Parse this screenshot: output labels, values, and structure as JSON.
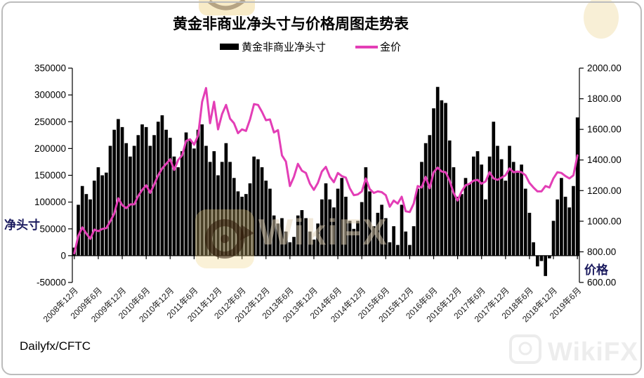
{
  "title": "黄金非商业净头寸与价格周图走势表",
  "source_label": "Dailyfx/CFTC",
  "legend": [
    {
      "label": "黄金非商业净头寸",
      "type": "bar",
      "color": "#000000"
    },
    {
      "label": "金价",
      "type": "line",
      "color": "#e33eb6"
    }
  ],
  "left_axis": {
    "title": "净头寸",
    "min": -50000,
    "max": 350000,
    "step": 50000,
    "ticks": [
      "350000",
      "300000",
      "250000",
      "200000",
      "150000",
      "100000",
      "50000",
      "0",
      "-50000"
    ],
    "title_color": "#1a1a5e"
  },
  "right_axis": {
    "title": "价格",
    "min": 600,
    "max": 2000,
    "step": 200,
    "ticks": [
      "2000.00",
      "1800.00",
      "1600.00",
      "1400.00",
      "1200.00",
      "1000.00",
      "800.00",
      "600.00"
    ],
    "title_color": "#1a1a5e"
  },
  "x_axis": {
    "tick_labels": [
      "2008年12月",
      "2009年6月",
      "2009年12月",
      "2010年6月",
      "2010年12月",
      "2011年6月",
      "2011年12月",
      "2012年6月",
      "2012年12月",
      "2013年6月",
      "2013年12月",
      "2014年6月",
      "2014年12月",
      "2015年6月",
      "2015年12月",
      "2016年6月",
      "2016年12月",
      "2017年6月",
      "2017年12月",
      "2018年6月",
      "2018年12月",
      "2019年6月"
    ],
    "points_per_tick": 6
  },
  "watermark": {
    "logo_text": "WikiFX",
    "bottom_text": "WikiFX"
  },
  "chart_data": {
    "type": "combo",
    "x_start_label": "2008年12月",
    "x_end_label": "2019年6月",
    "x_resolution": "monthly estimates read from weekly chart",
    "grid": false,
    "legend_position": "top",
    "series": [
      {
        "name": "黄金非商业净头寸",
        "type": "bar",
        "axis": "left",
        "color": "#000000",
        "ylim": [
          -50000,
          350000
        ],
        "values": [
          15000,
          95000,
          130000,
          115000,
          105000,
          140000,
          165000,
          150000,
          155000,
          205000,
          235000,
          255000,
          240000,
          210000,
          185000,
          205000,
          225000,
          245000,
          240000,
          205000,
          225000,
          250000,
          262000,
          235000,
          220000,
          185000,
          165000,
          195000,
          230000,
          215000,
          200000,
          235000,
          245000,
          205000,
          175000,
          195000,
          150000,
          175000,
          210000,
          175000,
          145000,
          120000,
          110000,
          115000,
          135000,
          185000,
          180000,
          165000,
          140000,
          125000,
          75000,
          60000,
          70000,
          45000,
          25000,
          35000,
          75000,
          85000,
          70000,
          45000,
          30000,
          60000,
          105000,
          135000,
          105000,
          90000,
          125000,
          145000,
          110000,
          65000,
          50000,
          65000,
          100000,
          165000,
          120000,
          55000,
          80000,
          95000,
          70000,
          25000,
          55000,
          20000,
          95000,
          45000,
          20000,
          55000,
          125000,
          175000,
          210000,
          225000,
          275000,
          315000,
          290000,
          285000,
          215000,
          165000,
          110000,
          115000,
          145000,
          135000,
          185000,
          195000,
          170000,
          105000,
          185000,
          250000,
          205000,
          180000,
          140000,
          205000,
          175000,
          155000,
          170000,
          125000,
          80000,
          25000,
          -20000,
          -10000,
          -38000,
          -5000,
          65000,
          105000,
          145000,
          110000,
          90000,
          130000,
          258000
        ]
      },
      {
        "name": "金价",
        "type": "line",
        "axis": "right",
        "color": "#e33eb6",
        "ylim": [
          600,
          2000
        ],
        "values": [
          790,
          905,
          960,
          920,
          885,
          945,
          935,
          950,
          955,
          1000,
          1050,
          1150,
          1105,
          1085,
          1110,
          1110,
          1165,
          1205,
          1235,
          1185,
          1240,
          1300,
          1345,
          1375,
          1405,
          1335,
          1400,
          1430,
          1525,
          1535,
          1500,
          1560,
          1780,
          1870,
          1640,
          1780,
          1600,
          1700,
          1760,
          1670,
          1640,
          1575,
          1600,
          1590,
          1665,
          1765,
          1760,
          1715,
          1660,
          1665,
          1580,
          1595,
          1430,
          1390,
          1230,
          1290,
          1375,
          1330,
          1315,
          1245,
          1205,
          1250,
          1325,
          1355,
          1290,
          1255,
          1315,
          1295,
          1285,
          1215,
          1170,
          1175,
          1195,
          1280,
          1210,
          1185,
          1195,
          1190,
          1170,
          1095,
          1135,
          1115,
          1160,
          1065,
          1060,
          1115,
          1230,
          1220,
          1290,
          1215,
          1320,
          1350,
          1325,
          1320,
          1265,
          1185,
          1135,
          1195,
          1235,
          1245,
          1265,
          1270,
          1245,
          1260,
          1320,
          1280,
          1270,
          1285,
          1300,
          1345,
          1320,
          1325,
          1320,
          1300,
          1250,
          1220,
          1195,
          1195,
          1230,
          1220,
          1280,
          1320,
          1315,
          1295,
          1280,
          1300,
          1430
        ]
      }
    ]
  }
}
